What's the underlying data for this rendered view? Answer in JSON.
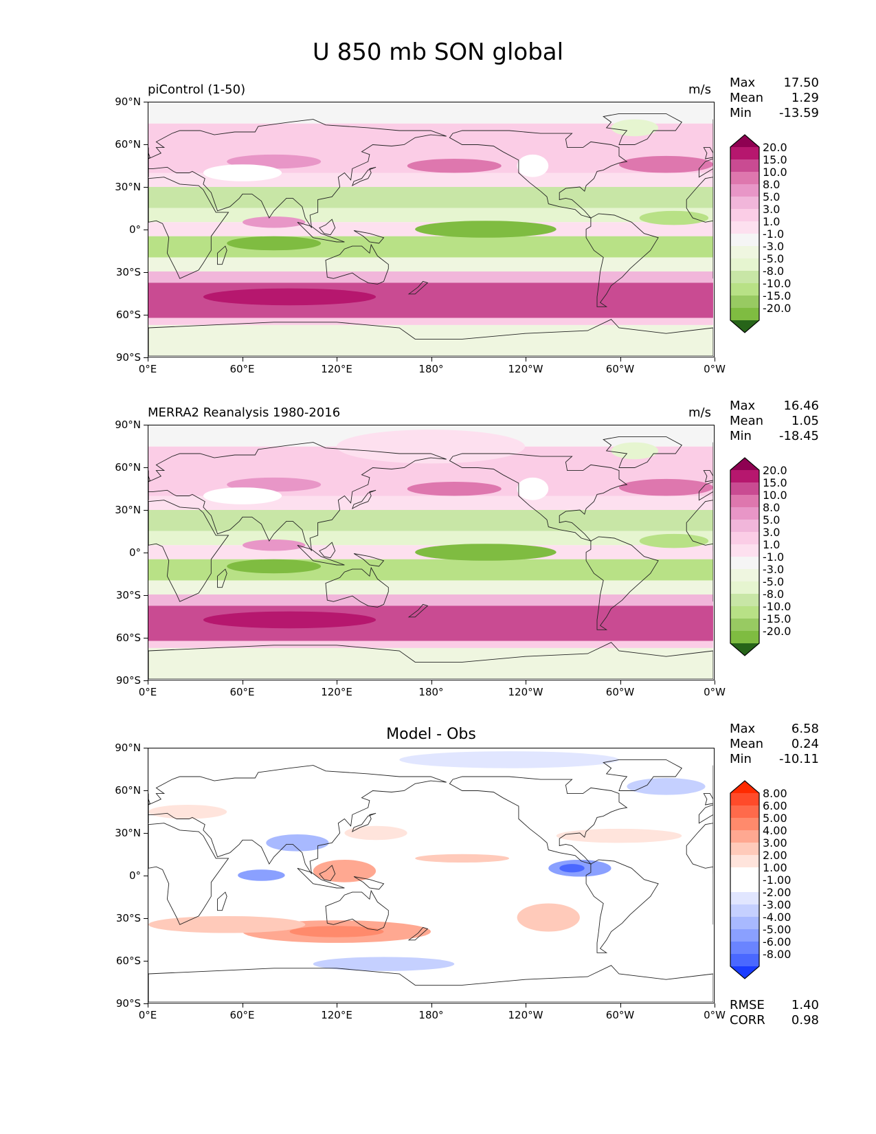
{
  "title": "U 850 mb SON global",
  "colors": {
    "pos_scale": [
      "#f5f5f5",
      "#fde0ef",
      "#fbcde6",
      "#f1b6da",
      "#e896c7",
      "#de77ae",
      "#c94b92",
      "#b6176e",
      "#8e0152"
    ],
    "neg_scale": [
      "#f5f5f5",
      "#eff6e0",
      "#e6f5d0",
      "#c8e6a6",
      "#b8e186",
      "#98ca62",
      "#7fbc41",
      "#5a9e2e",
      "#276419"
    ],
    "diff_pos": [
      "#ffffff",
      "#ffe4dc",
      "#ffcaba",
      "#ffa891",
      "#ff8a6c",
      "#ff6a4b",
      "#ff4b2a",
      "#ff2a00"
    ],
    "diff_neg": [
      "#ffffff",
      "#e1e6ff",
      "#c5d0ff",
      "#a8b9ff",
      "#8aa0ff",
      "#6a84ff",
      "#4a68ff",
      "#1a3cff"
    ]
  },
  "axis": {
    "lat_labels": [
      "90°N",
      "60°N",
      "30°N",
      "0°",
      "30°S",
      "60°S",
      "90°S"
    ],
    "lon_labels": [
      "0°E",
      "60°E",
      "120°E",
      "180°",
      "120°W",
      "60°W",
      "0°W"
    ]
  },
  "panels": [
    {
      "title": "piControl (1-50)",
      "units": "m/s",
      "stats": [
        {
          "label": "Max",
          "value": "17.50"
        },
        {
          "label": "Mean",
          "value": "1.29"
        },
        {
          "label": "Min",
          "value": "-13.59"
        }
      ],
      "colorbar": {
        "levels": [
          "20.0",
          "15.0",
          "10.0",
          "8.0",
          "5.0",
          "3.0",
          "1.0",
          "-1.0",
          "-3.0",
          "-5.0",
          "-8.0",
          "-10.0",
          "-15.0",
          "-20.0"
        ],
        "colors": [
          "#8e0152",
          "#b6176e",
          "#c94b92",
          "#de77ae",
          "#e896c7",
          "#f1b6da",
          "#fbcde6",
          "#fde0ef",
          "#f5f5f5",
          "#eff6e0",
          "#e6f5d0",
          "#c8e6a6",
          "#b8e186",
          "#98ca62",
          "#7fbc41",
          "#276419"
        ]
      }
    },
    {
      "title": "MERRA2 Reanalysis 1980-2016",
      "units": "m/s",
      "stats": [
        {
          "label": "Max",
          "value": "16.46"
        },
        {
          "label": "Mean",
          "value": "1.05"
        },
        {
          "label": "Min",
          "value": "-18.45"
        }
      ],
      "colorbar": {
        "levels": [
          "20.0",
          "15.0",
          "10.0",
          "8.0",
          "5.0",
          "3.0",
          "1.0",
          "-1.0",
          "-3.0",
          "-5.0",
          "-8.0",
          "-10.0",
          "-15.0",
          "-20.0"
        ],
        "colors": [
          "#8e0152",
          "#b6176e",
          "#c94b92",
          "#de77ae",
          "#e896c7",
          "#f1b6da",
          "#fbcde6",
          "#fde0ef",
          "#f5f5f5",
          "#eff6e0",
          "#e6f5d0",
          "#c8e6a6",
          "#b8e186",
          "#98ca62",
          "#7fbc41",
          "#276419"
        ]
      }
    },
    {
      "title": "Model - Obs",
      "units": "",
      "stats": [
        {
          "label": "Max",
          "value": "6.58"
        },
        {
          "label": "Mean",
          "value": "0.24"
        },
        {
          "label": "Min",
          "value": "-10.11"
        }
      ],
      "colorbar": {
        "levels": [
          "8.00",
          "6.00",
          "5.00",
          "4.00",
          "3.00",
          "2.00",
          "1.00",
          "-1.00",
          "-2.00",
          "-3.00",
          "-4.00",
          "-5.00",
          "-6.00",
          "-8.00"
        ],
        "colors": [
          "#ff2a00",
          "#ff4b2a",
          "#ff6a4b",
          "#ff8a6c",
          "#ffa891",
          "#ffcaba",
          "#ffe4dc",
          "#ffffff",
          "#ffffff",
          "#e1e6ff",
          "#c5d0ff",
          "#a8b9ff",
          "#8aa0ff",
          "#6a84ff",
          "#4a68ff",
          "#1a3cff"
        ]
      },
      "bottom_stats": [
        {
          "label": "RMSE",
          "value": "1.40"
        },
        {
          "label": "CORR",
          "value": "0.98"
        }
      ]
    }
  ]
}
